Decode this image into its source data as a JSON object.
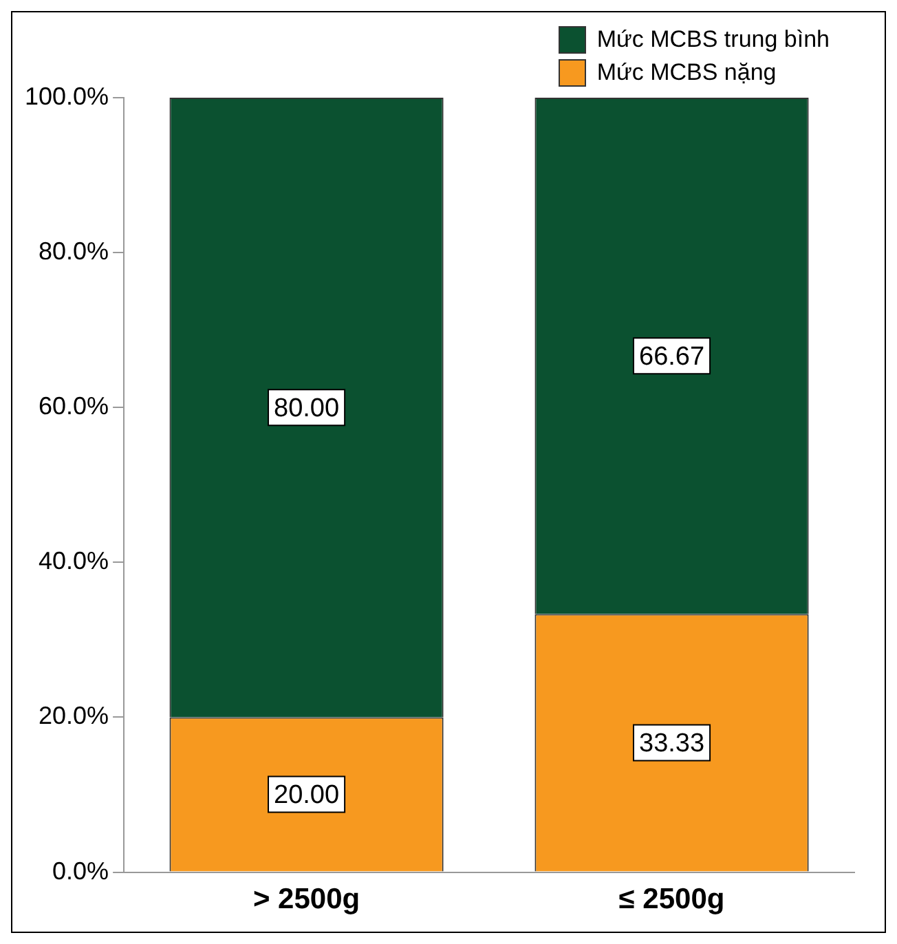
{
  "chart_data": {
    "type": "bar",
    "stacked": true,
    "categories": [
      "> 2500g",
      "≤ 2500g"
    ],
    "series": [
      {
        "name": "Mức MCBS nặng",
        "color": "#f7991f",
        "values": [
          20.0,
          33.33
        ],
        "value_labels": [
          "20.00",
          "33.33"
        ]
      },
      {
        "name": "Mức MCBS trung bình",
        "color": "#0b5130",
        "values": [
          80.0,
          66.67
        ],
        "value_labels": [
          "80.00",
          "66.67"
        ]
      }
    ],
    "ylim": [
      0,
      100
    ],
    "yticks": [
      {
        "value": 0,
        "label": "0.0%"
      },
      {
        "value": 20,
        "label": "20.0%"
      },
      {
        "value": 40,
        "label": "40.0%"
      },
      {
        "value": 60,
        "label": "60.0%"
      },
      {
        "value": 80,
        "label": "80.0%"
      },
      {
        "value": 100,
        "label": "100.0%"
      }
    ],
    "grid": false,
    "legend": "top right"
  }
}
